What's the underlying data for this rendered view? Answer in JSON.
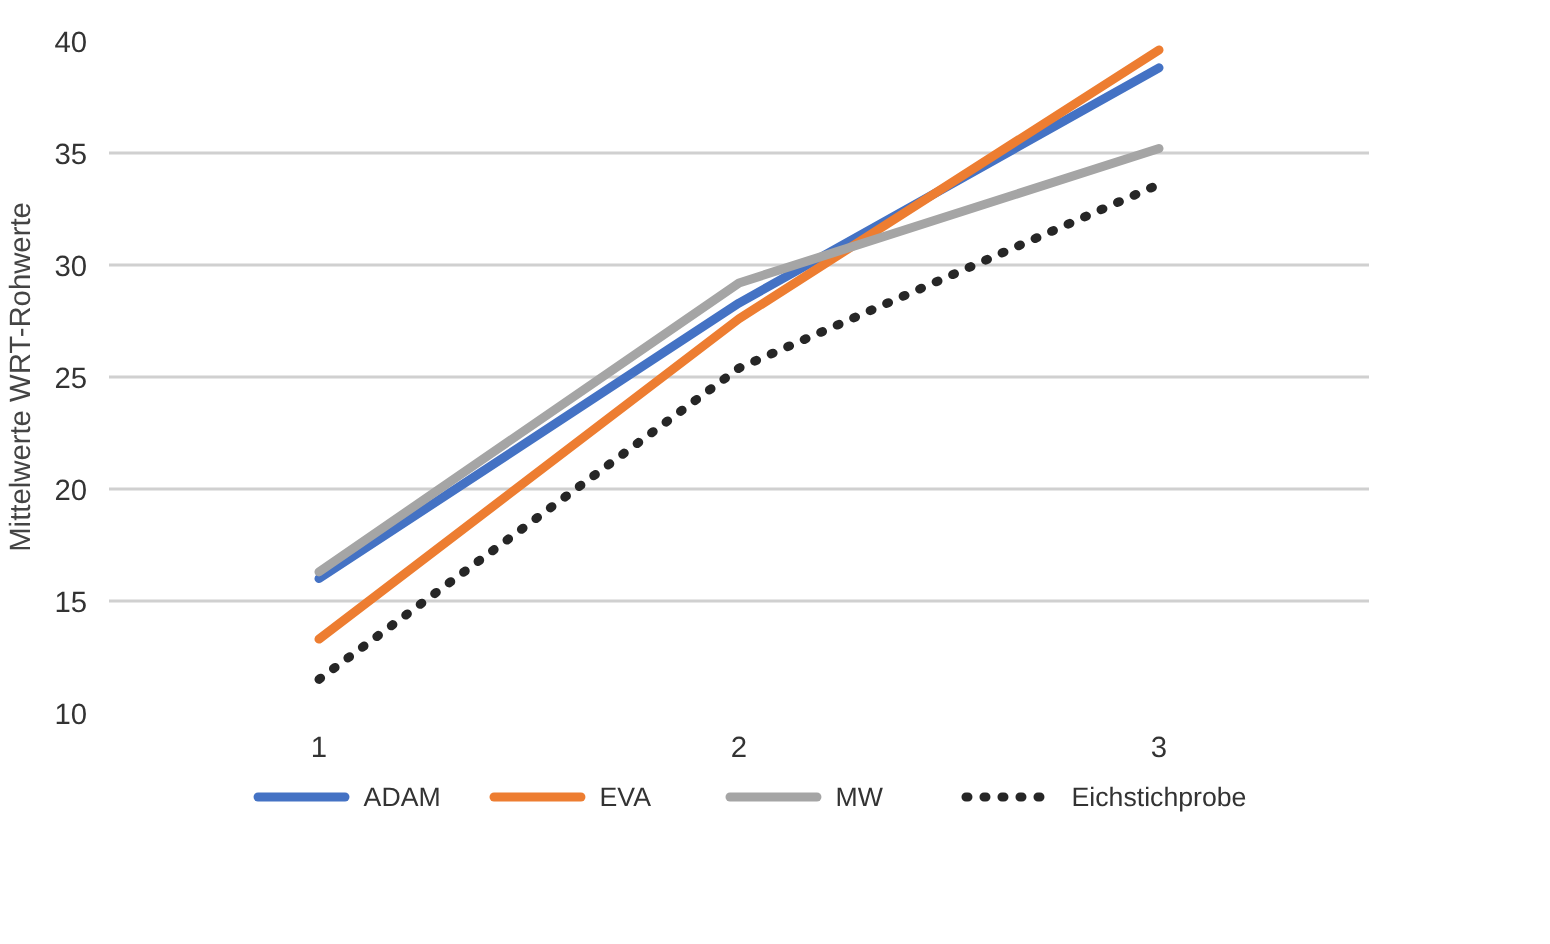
{
  "chart_data": {
    "type": "line",
    "ylabel": "Mittelwerte WRT-Rohwerte",
    "x": [
      1,
      2,
      3
    ],
    "xlim": [
      0.5,
      3.5
    ],
    "xticks": [
      1,
      2,
      3
    ],
    "ylim": [
      10,
      40
    ],
    "yticks": [
      10,
      15,
      20,
      25,
      30,
      35,
      40
    ],
    "grid": "y",
    "legend": "bottom",
    "series": [
      {
        "name": "ADAM",
        "color": "#4472c4",
        "values": [
          16.0,
          28.3,
          38.8
        ],
        "line_style": "solid"
      },
      {
        "name": "EVA",
        "color": "#ed7d31",
        "values": [
          13.3,
          27.6,
          39.6
        ],
        "line_style": "solid"
      },
      {
        "name": "MW",
        "color": "#a5a5a5",
        "values": [
          16.3,
          29.2,
          35.2
        ],
        "line_style": "solid"
      },
      {
        "name": "Eichstichprobe",
        "color": "#262626",
        "values": [
          11.5,
          25.4,
          33.6
        ],
        "line_style": "dotted"
      }
    ]
  }
}
